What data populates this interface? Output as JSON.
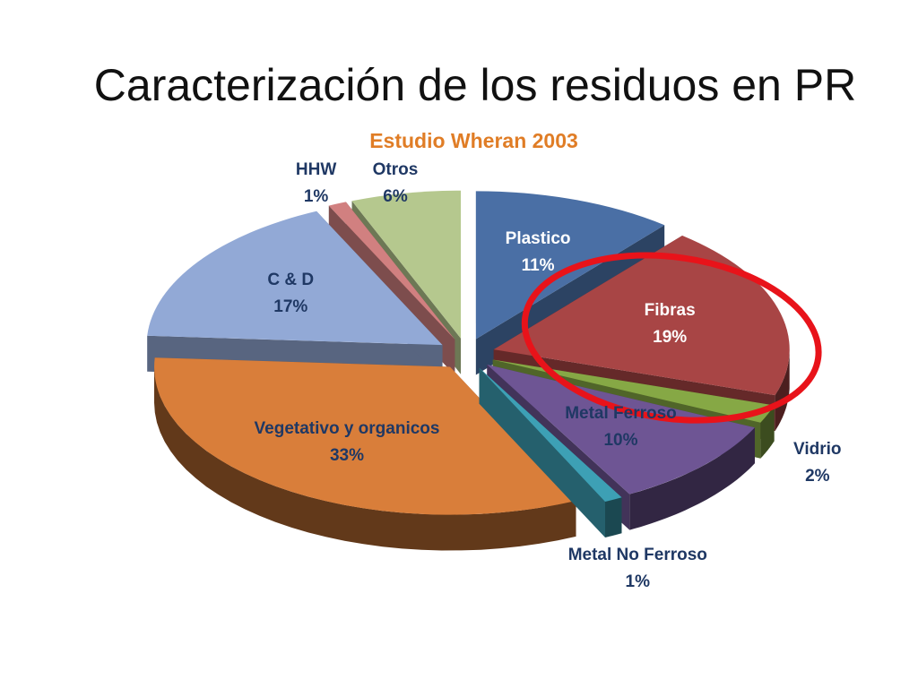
{
  "slide": {
    "title": "Caracterización de los residuos en PR"
  },
  "chart_data": {
    "type": "pie",
    "title": "Estudio Wheran 2003",
    "title_color": "#E07D26",
    "legend": "none",
    "slices": [
      {
        "name": "Plastico",
        "value": 11,
        "label": "11%",
        "color": "#4A6FA5",
        "label_color": "#FFFFFF"
      },
      {
        "name": "Fibras",
        "value": 19,
        "label": "19%",
        "color": "#A84545",
        "label_color": "#FFFFFF"
      },
      {
        "name": "Vidrio",
        "value": 2,
        "label": "2%",
        "color": "#86A845",
        "label_color": "#1F3864"
      },
      {
        "name": "Metal Ferroso",
        "value": 10,
        "label": "10%",
        "color": "#6E5594",
        "label_color": "#1F3864"
      },
      {
        "name": "Metal No Ferroso",
        "value": 1,
        "label": "1%",
        "color": "#3DA0B5",
        "label_color": "#1F3864"
      },
      {
        "name": "Vegetativo y organicos",
        "value": 33,
        "label": "33%",
        "color": "#D97E3A",
        "label_color": "#1F3864"
      },
      {
        "name": "C & D",
        "value": 17,
        "label": "17%",
        "color": "#92A9D6",
        "label_color": "#1F3864"
      },
      {
        "name": "HHW",
        "value": 1,
        "label": "1%",
        "color": "#D18080",
        "label_color": "#1F3864"
      },
      {
        "name": "Otros",
        "value": 6,
        "label": "6%",
        "color": "#B5C88E",
        "label_color": "#1F3864"
      }
    ],
    "highlight": {
      "slice": "Fibras",
      "shape": "ellipse",
      "color": "#E8131A"
    }
  }
}
